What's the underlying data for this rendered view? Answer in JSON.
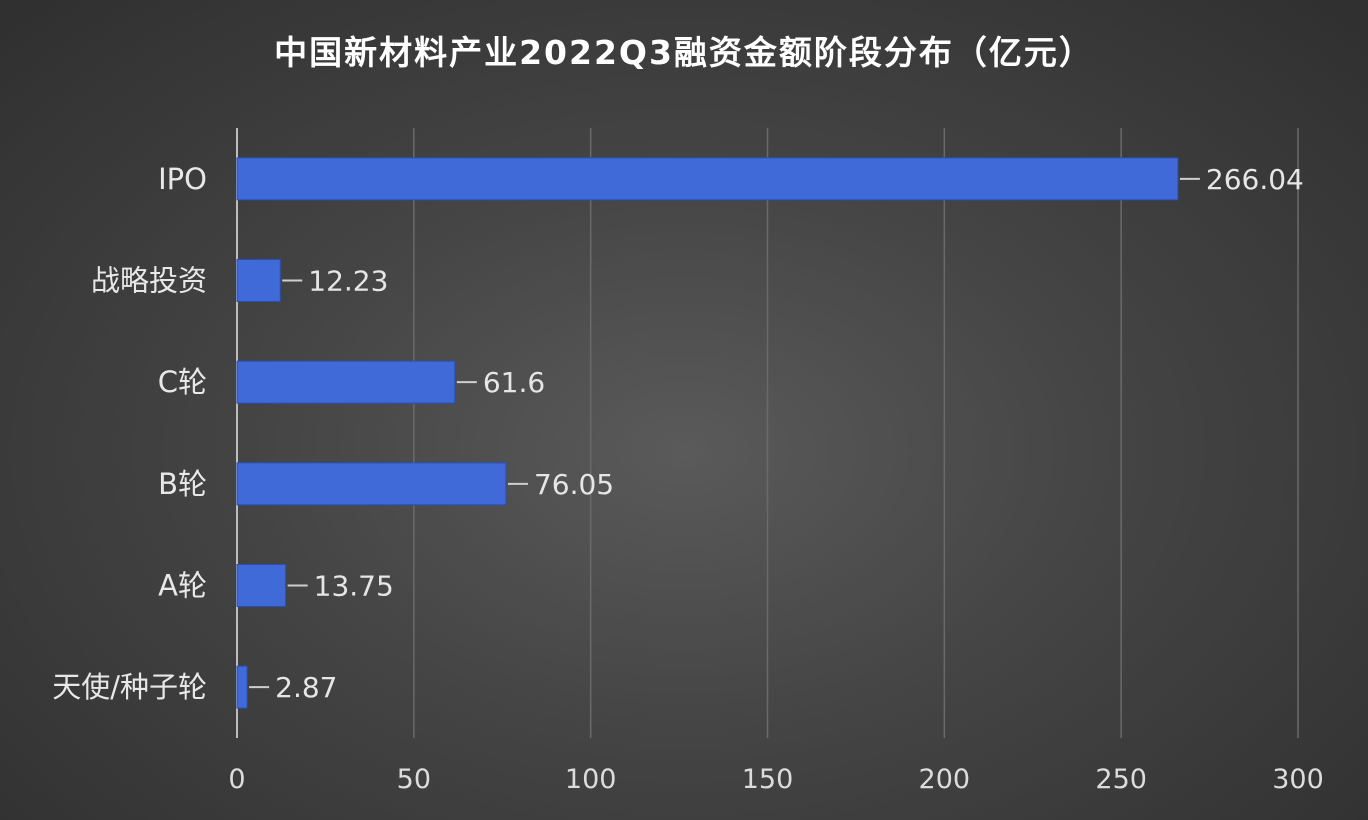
{
  "colors": {
    "bar": "#3f6ad8",
    "bar_edge": "#2a4fb0",
    "grid": "#6a6a6a",
    "axis": "#bdbdbd",
    "leader": "#cfcfcf"
  },
  "chart_data": {
    "type": "bar",
    "orientation": "horizontal",
    "title": "中国新材料产业2022Q3融资金额阶段分布（亿元）",
    "categories": [
      "IPO",
      "战略投资",
      "C轮",
      "B轮",
      "A轮",
      "天使/种子轮"
    ],
    "values": [
      266.04,
      12.23,
      61.6,
      76.05,
      13.75,
      2.87
    ],
    "value_labels": [
      "266.04",
      "12.23",
      "61.6",
      "76.05",
      "13.75",
      "2.87"
    ],
    "xlim": [
      0,
      300
    ],
    "xticks": [
      0,
      50,
      100,
      150,
      200,
      250,
      300
    ],
    "xlabel": "",
    "ylabel": "",
    "grid": "vertical",
    "legend": "none"
  }
}
